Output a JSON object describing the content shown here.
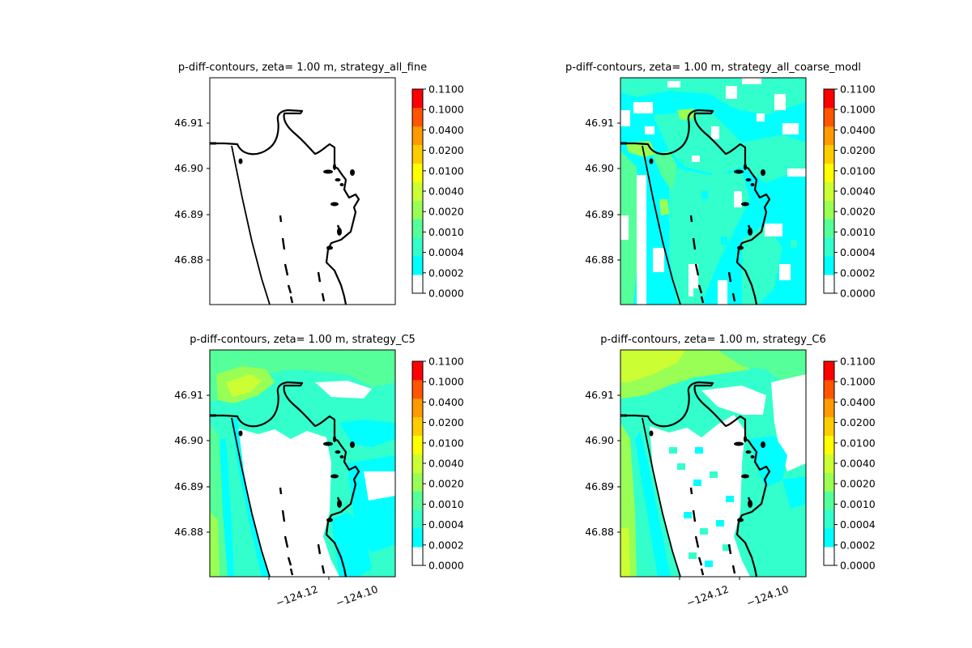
{
  "chart_data": {
    "type": "heatmap",
    "colorbar": {
      "levels": [
        "0.0000",
        "0.0002",
        "0.0004",
        "0.0010",
        "0.0020",
        "0.0040",
        "0.0100",
        "0.0200",
        "0.0400",
        "0.1000",
        "0.1100"
      ],
      "colors": [
        "#ffffff",
        "#00ffff",
        "#33ffcc",
        "#55ff99",
        "#99ff55",
        "#ccff33",
        "#ffff00",
        "#ffcc00",
        "#ff9900",
        "#ff5500",
        "#ff0000"
      ]
    },
    "yticks": [
      "46.91",
      "46.90",
      "46.89",
      "46.88"
    ],
    "xticks": [
      "−124.12",
      "−124.10"
    ],
    "panels": [
      {
        "title": "p-diff-contours, zeta= 1.00 m, strategy_all_fine",
        "fill": "none"
      },
      {
        "title": "p-diff-contours, zeta= 1.00 m, strategy_all_coarse_modl",
        "fill": "patchy"
      },
      {
        "title": "p-diff-contours, zeta= 1.00 m, strategy_C5",
        "fill": "smooth"
      },
      {
        "title": "p-diff-contours, zeta= 1.00 m, strategy_C6",
        "fill": "strong"
      }
    ]
  }
}
